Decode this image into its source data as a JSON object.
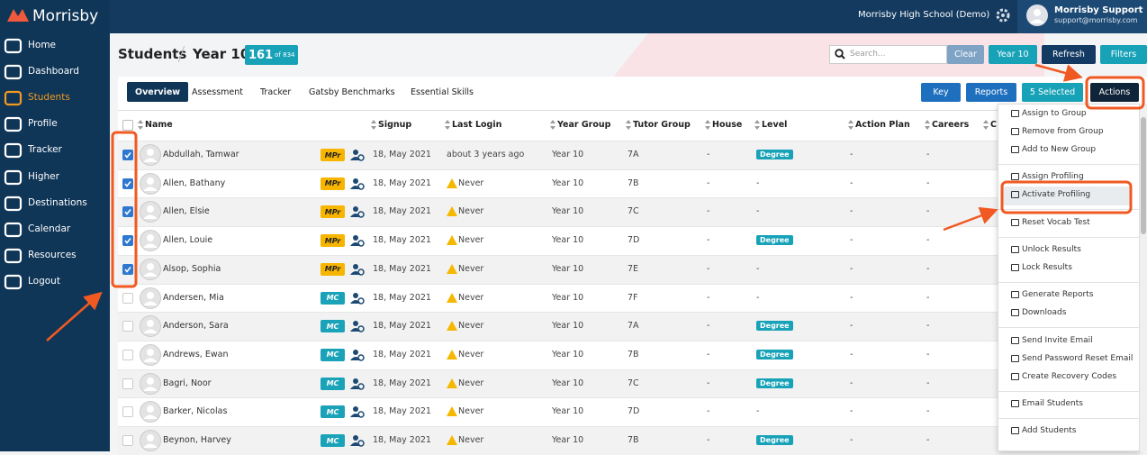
{
  "brand": "Morrisby",
  "nav": [
    {
      "label": "Home"
    },
    {
      "label": "Dashboard"
    },
    {
      "label": "Students",
      "active": true
    },
    {
      "label": "Profile"
    },
    {
      "label": "Tracker"
    },
    {
      "label": "Higher"
    },
    {
      "label": "Destinations"
    },
    {
      "label": "Calendar"
    },
    {
      "label": "Resources"
    },
    {
      "label": "Logout"
    }
  ],
  "topbar": {
    "school": "Morrisby High School (Demo)",
    "user_name": "Morrisby Support",
    "user_email": "support@morrisby.com"
  },
  "header": {
    "title": "Students",
    "subtitle": "Year 10",
    "count": "161",
    "count_of": "of 834",
    "search_placeholder": "Search...",
    "buttons": [
      "Clear",
      "Year 10",
      "Refresh",
      "Filters"
    ]
  },
  "tabs": [
    "Overview",
    "Assessment",
    "Tracker",
    "Gatsby Benchmarks",
    "Essential Skills"
  ],
  "toolbar": [
    "Key",
    "Reports",
    "5 Selected",
    "Actions"
  ],
  "columns": [
    "Name",
    "Signup",
    "Last Login",
    "Year Group",
    "Tutor Group",
    "House",
    "Level",
    "Action Plan",
    "Careers",
    "C"
  ],
  "rows": [
    {
      "checked": true,
      "name": "Abdullah, Tamwar",
      "badge": "MPr",
      "badge_color": "#f7b500",
      "signup": "18, May 2021",
      "login_warning": false,
      "last_login": "about 3 years ago",
      "year_group": "Year 10",
      "tutor_group": "7A",
      "house": "-",
      "level": "Degree",
      "level_badge": true,
      "action_plan": "-",
      "careers": "-"
    },
    {
      "checked": true,
      "name": "Allen, Bathany",
      "badge": "MPr",
      "badge_color": "#f7b500",
      "signup": "18, May 2021",
      "login_warning": true,
      "last_login": "Never",
      "year_group": "Year 10",
      "tutor_group": "7B",
      "house": "-",
      "level": "-",
      "level_badge": false,
      "action_plan": "-",
      "careers": "-"
    },
    {
      "checked": true,
      "name": "Allen, Elsie",
      "badge": "MPr",
      "badge_color": "#f7b500",
      "signup": "18, May 2021",
      "login_warning": true,
      "last_login": "Never",
      "year_group": "Year 10",
      "tutor_group": "7C",
      "house": "-",
      "level": "-",
      "level_badge": false,
      "action_plan": "-",
      "careers": "-"
    },
    {
      "checked": true,
      "name": "Allen, Louie",
      "badge": "MPr",
      "badge_color": "#f7b500",
      "signup": "18, May 2021",
      "login_warning": true,
      "last_login": "Never",
      "year_group": "Year 10",
      "tutor_group": "7D",
      "house": "-",
      "level": "Degree",
      "level_badge": true,
      "action_plan": "-",
      "careers": "-"
    },
    {
      "checked": true,
      "name": "Alsop, Sophia",
      "badge": "MPr",
      "badge_color": "#f7b500",
      "signup": "18, May 2021",
      "login_warning": true,
      "last_login": "Never",
      "year_group": "Year 10",
      "tutor_group": "7E",
      "house": "-",
      "level": "-",
      "level_badge": false,
      "action_plan": "-",
      "careers": "-"
    },
    {
      "checked": false,
      "name": "Andersen, Mia",
      "badge": "MC",
      "badge_color": "#1aa3b8",
      "signup": "18, May 2021",
      "login_warning": true,
      "last_login": "Never",
      "year_group": "Year 10",
      "tutor_group": "7F",
      "house": "-",
      "level": "-",
      "level_badge": false,
      "action_plan": "-",
      "careers": "-"
    },
    {
      "checked": false,
      "name": "Anderson, Sara",
      "badge": "MC",
      "badge_color": "#1aa3b8",
      "signup": "18, May 2021",
      "login_warning": true,
      "last_login": "Never",
      "year_group": "Year 10",
      "tutor_group": "7A",
      "house": "-",
      "level": "Degree",
      "level_badge": true,
      "action_plan": "-",
      "careers": "-"
    },
    {
      "checked": false,
      "name": "Andrews, Ewan",
      "badge": "MC",
      "badge_color": "#1aa3b8",
      "signup": "18, May 2021",
      "login_warning": true,
      "last_login": "Never",
      "year_group": "Year 10",
      "tutor_group": "7B",
      "house": "-",
      "level": "Degree",
      "level_badge": true,
      "action_plan": "-",
      "careers": "-"
    },
    {
      "checked": false,
      "name": "Bagri, Noor",
      "badge": "MC",
      "badge_color": "#1aa3b8",
      "signup": "18, May 2021",
      "login_warning": true,
      "last_login": "Never",
      "year_group": "Year 10",
      "tutor_group": "7C",
      "house": "-",
      "level": "Degree",
      "level_badge": true,
      "action_plan": "-",
      "careers": "-"
    },
    {
      "checked": false,
      "name": "Barker, Nicolas",
      "badge": "MC",
      "badge_color": "#1aa3b8",
      "signup": "18, May 2021",
      "login_warning": true,
      "last_login": "Never",
      "year_group": "Year 10",
      "tutor_group": "7D",
      "house": "-",
      "level": "-",
      "level_badge": false,
      "action_plan": "-",
      "careers": "-"
    },
    {
      "checked": false,
      "name": "Beynon, Harvey",
      "badge": "MC",
      "badge_color": "#1aa3b8",
      "signup": "18, May 2021",
      "login_warning": true,
      "last_login": "Never",
      "year_group": "Year 10",
      "tutor_group": "7B",
      "house": "-",
      "level": "Degree",
      "level_badge": true,
      "action_plan": "-",
      "careers": "-"
    }
  ],
  "menu": [
    [
      "Assign to Group",
      "Remove from Group",
      "Add to New Group"
    ],
    [
      "Assign Profiling",
      "Activate Profiling"
    ],
    [
      "Reset Vocab Test"
    ],
    [
      "Unlock Results",
      "Lock Results"
    ],
    [
      "Generate Reports",
      "Downloads"
    ],
    [
      "Send Invite Email",
      "Send Password Reset Email",
      "Create Recovery Codes"
    ],
    [
      "Email Students"
    ],
    [
      "Add Students"
    ]
  ],
  "menu_highlight": "1.1"
}
